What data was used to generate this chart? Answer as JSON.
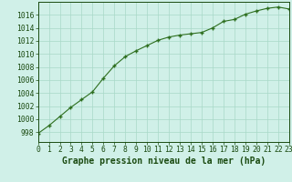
{
  "x": [
    0,
    1,
    2,
    3,
    4,
    5,
    6,
    7,
    8,
    9,
    10,
    11,
    12,
    13,
    14,
    15,
    16,
    17,
    18,
    19,
    20,
    21,
    22,
    23
  ],
  "y": [
    997.8,
    999.0,
    1000.4,
    1001.8,
    1003.0,
    1004.2,
    1006.3,
    1008.2,
    1009.6,
    1010.5,
    1011.3,
    1012.1,
    1012.6,
    1012.9,
    1013.1,
    1013.3,
    1014.0,
    1015.0,
    1015.3,
    1016.1,
    1016.6,
    1017.0,
    1017.2,
    1016.9
  ],
  "xlim": [
    0,
    23
  ],
  "ylim": [
    996.5,
    1018.0
  ],
  "yticks": [
    998,
    1000,
    1002,
    1004,
    1006,
    1008,
    1010,
    1012,
    1014,
    1016
  ],
  "xticks": [
    0,
    1,
    2,
    3,
    4,
    5,
    6,
    7,
    8,
    9,
    10,
    11,
    12,
    13,
    14,
    15,
    16,
    17,
    18,
    19,
    20,
    21,
    22,
    23
  ],
  "line_color": "#2d6e1e",
  "marker_color": "#2d6e1e",
  "bg_color": "#d0f0e8",
  "grid_color": "#a8d8c8",
  "xlabel": "Graphe pression niveau de la mer (hPa)",
  "xlabel_color": "#1a4a10",
  "tick_color": "#1a4a10",
  "tick_fontsize": 5.8,
  "label_fontsize": 7.0
}
